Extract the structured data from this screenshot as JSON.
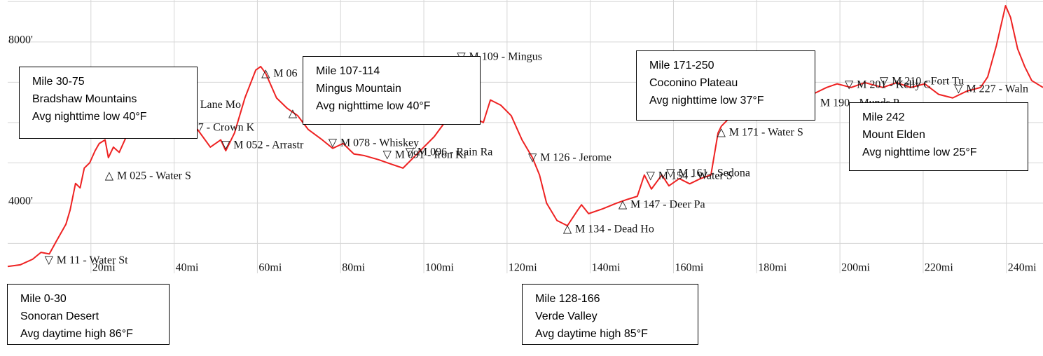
{
  "chart_data": {
    "type": "line",
    "color": "#ee2222",
    "grid": true,
    "xlim": [
      0,
      248.8
    ],
    "ylim": [
      2260,
      9040
    ],
    "xticks": [
      {
        "value": 20,
        "label": "20mi"
      },
      {
        "value": 40,
        "label": "40mi"
      },
      {
        "value": 60,
        "label": "60mi"
      },
      {
        "value": 80,
        "label": "80mi"
      },
      {
        "value": 100,
        "label": "100mi"
      },
      {
        "value": 120,
        "label": "120mi"
      },
      {
        "value": 140,
        "label": "140mi"
      },
      {
        "value": 160,
        "label": "160mi"
      },
      {
        "value": 180,
        "label": "180mi"
      },
      {
        "value": 200,
        "label": "200mi"
      },
      {
        "value": 220,
        "label": "220mi"
      },
      {
        "value": 240,
        "label": "240mi"
      }
    ],
    "yticks": [
      {
        "value": 4000,
        "label": "4000'"
      },
      {
        "value": 8000,
        "label": "8000'"
      }
    ],
    "ygrid": [
      3000,
      4000,
      5000,
      6000,
      7000,
      8000,
      9000
    ],
    "x": [
      0,
      3,
      6,
      8,
      10,
      11.6,
      14,
      15,
      16.3,
      17.4,
      18.4,
      19.7,
      21,
      22,
      23.4,
      24.2,
      25.4,
      26.8,
      28.5,
      30,
      35,
      40,
      44,
      45.6,
      48.7,
      51.2,
      52.4,
      54.5,
      57,
      59.6,
      60.8,
      62,
      64.6,
      67.2,
      69.7,
      72.2,
      75.6,
      78.1,
      80.6,
      83.2,
      85.7,
      89.1,
      92.4,
      95,
      97.5,
      100,
      102.5,
      105,
      109.3,
      112.6,
      114.3,
      116,
      118.5,
      121,
      123.6,
      126.1,
      127.8,
      129.5,
      132,
      134.5,
      137,
      137.9,
      139.6,
      143,
      146.3,
      148.8,
      151.3,
      153,
      154.7,
      157.2,
      158.9,
      161.4,
      163.9,
      166.5,
      169,
      170.7,
      171.5,
      174,
      176.6,
      180,
      183.3,
      190,
      193.4,
      196.8,
      199.3,
      202.7,
      206,
      210.3,
      213.6,
      217,
      220.4,
      223.7,
      227.1,
      230.5,
      233.8,
      235.5,
      237.6,
      239.8,
      241,
      242.7,
      244.4,
      246.1,
      248.8
    ],
    "series": [
      {
        "values": [
          2430,
          2470,
          2610,
          2780,
          2740,
          3040,
          3480,
          3830,
          4490,
          4380,
          4870,
          5000,
          5300,
          5480,
          5570,
          5130,
          5390,
          5260,
          5650,
          6000,
          6300,
          6100,
          5900,
          5830,
          5390,
          5570,
          5300,
          5740,
          6610,
          7300,
          7390,
          7220,
          6610,
          6350,
          6170,
          5830,
          5570,
          5360,
          5480,
          5220,
          5180,
          5080,
          4960,
          4870,
          5130,
          5390,
          5650,
          6000,
          6260,
          6090,
          6000,
          6560,
          6430,
          6170,
          5570,
          5130,
          4700,
          4000,
          3570,
          3440,
          3830,
          3960,
          3740,
          3860,
          4000,
          4090,
          4170,
          4700,
          4350,
          4700,
          4430,
          4610,
          4480,
          4610,
          4700,
          5740,
          5910,
          6170,
          6430,
          6700,
          6780,
          6700,
          6700,
          6870,
          6960,
          6870,
          6990,
          6870,
          6990,
          6870,
          6960,
          6700,
          6610,
          6780,
          6870,
          7130,
          7910,
          8900,
          8610,
          7830,
          7390,
          7040,
          6870
        ]
      }
    ],
    "waypoints": [
      {
        "symbol": "▽",
        "label": "M 11 - Water St",
        "x": 9.9,
        "y": 2570
      },
      {
        "symbol": "△",
        "label": "M 025 - Water S",
        "x": 24.4,
        "y": 4660
      },
      {
        "label": "Lane Mo",
        "x": 44.4,
        "y": 6430
      },
      {
        "label": "7 - Crown K",
        "x": 43.9,
        "y": 5860
      },
      {
        "symbol": "▽",
        "label": "M 052 - Arrastr",
        "x": 52.4,
        "y": 5430
      },
      {
        "symbol": "△",
        "label": "M 06",
        "x": 62,
        "y": 7200
      },
      {
        "symbol": "△",
        "x": 68.5,
        "y": 6210
      },
      {
        "symbol": "▽",
        "label": "M 078 - Whiskey",
        "x": 78.1,
        "y": 5480
      },
      {
        "symbol": "▽",
        "label": "M 091 - Iron Ki",
        "x": 91.2,
        "y": 5180
      },
      {
        "symbol": "▽",
        "label": "M 096 - Rain Ra",
        "x": 96.6,
        "y": 5250
      },
      {
        "symbol": "▽",
        "label": "M 109 - Mingus",
        "x": 109,
        "y": 7620
      },
      {
        "symbol": "▽",
        "label": "M 126 - Jerome",
        "x": 126.1,
        "y": 5110
      },
      {
        "symbol": "△",
        "label": "M 134 - Dead Ho",
        "x": 134.5,
        "y": 3340
      },
      {
        "symbol": "△",
        "label": "M 147 - Deer Pa",
        "x": 147.8,
        "y": 3950
      },
      {
        "symbol": "▽",
        "label": "M 154 - Water S",
        "x": 154.5,
        "y": 4660
      },
      {
        "symbol": "▽",
        "label": "M 161 - Sedona",
        "x": 159.3,
        "y": 4730
      },
      {
        "symbol": "△",
        "label": "M 171 - Water S",
        "x": 171.5,
        "y": 5740
      },
      {
        "label": "M 190 - Munds P",
        "x": 193.4,
        "y": 6470
      },
      {
        "symbol": "▽",
        "label": "M 201 - Kelly C",
        "x": 202.2,
        "y": 6920
      },
      {
        "symbol": "▽",
        "label": "M 210 - Fort Tu",
        "x": 210.6,
        "y": 7010
      },
      {
        "symbol": "▽",
        "label": "M 227 - Waln",
        "x": 228.5,
        "y": 6820
      }
    ],
    "annotations": [
      {
        "lines": [
          "Mile 30-75",
          "Bradshaw Mountains",
          "Avg nighttime low 40°F"
        ]
      },
      {
        "lines": [
          "Mile 107-114",
          "Mingus Mountain",
          "Avg nighttime low 40°F"
        ]
      },
      {
        "lines": [
          "Mile 171-250",
          "Coconino Plateau",
          "Avg nighttime low 37°F"
        ]
      },
      {
        "lines": [
          "Mile 242",
          "Mount Elden",
          "Avg nighttime low 25°F"
        ]
      },
      {
        "lines": [
          "Mile 0-30",
          "Sonoran Desert",
          "Avg daytime high 86°F"
        ]
      },
      {
        "lines": [
          "Mile 128-166",
          "Verde Valley",
          "Avg daytime high 85°F"
        ]
      }
    ]
  }
}
